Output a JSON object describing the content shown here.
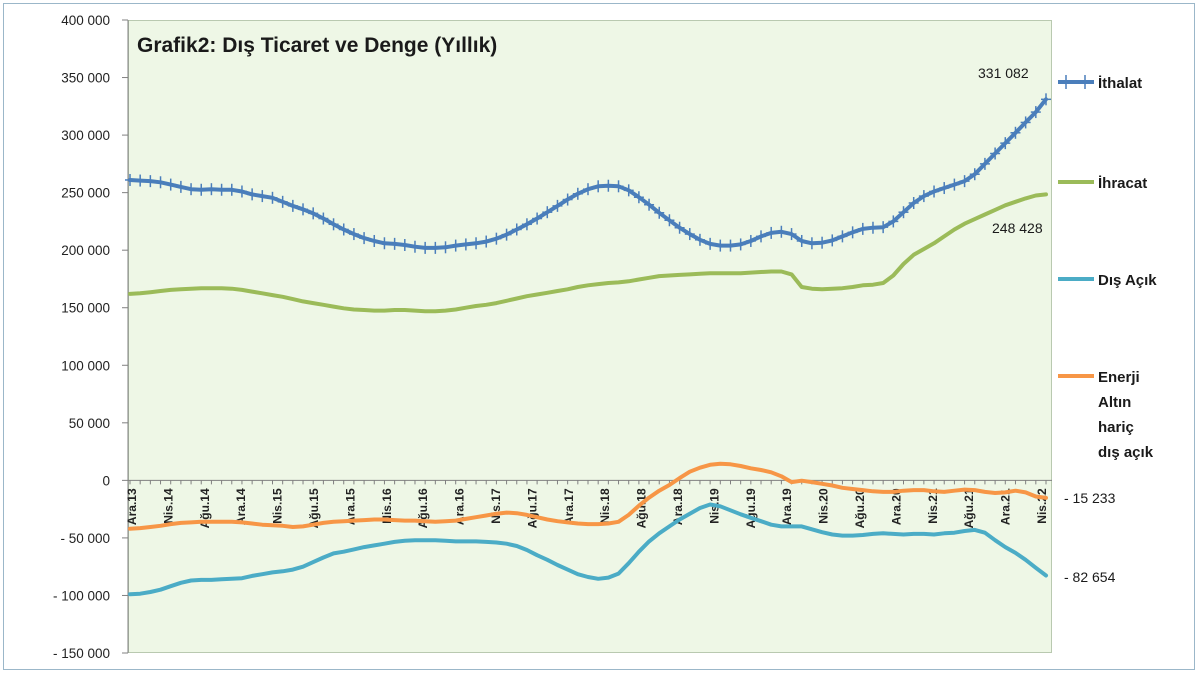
{
  "chart_data": {
    "type": "line",
    "title": "Grafik2: Dış Ticaret ve Denge (Yıllık)",
    "ylim": [
      -150000,
      400000
    ],
    "yticks": [
      400000,
      350000,
      300000,
      250000,
      200000,
      150000,
      100000,
      50000,
      0,
      -50000,
      -100000,
      -150000
    ],
    "ytick_labels": [
      "400 000",
      "350 000",
      "300 000",
      "250 000",
      "200 000",
      "150 000",
      "100 000",
      "50 000",
      "0",
      "- 50 000",
      "- 100 000",
      "- 150 000"
    ],
    "x_labels": [
      "Ara.13",
      "Nis.14",
      "Ağu.14",
      "Ara.14",
      "Nis.15",
      "Ağu.15",
      "Ara.15",
      "Nis.16",
      "Ağu.16",
      "Ara.16",
      "Nis.17",
      "Ağu.17",
      "Ara.17",
      "Nis.18",
      "Ağu.18",
      "Ara.18",
      "Nis.19",
      "Ağu.19",
      "Ara.19",
      "Nis.20",
      "Ağu.20",
      "Ara.20",
      "Nis.21",
      "Ağu.21",
      "Ara.21",
      "Nis.22"
    ],
    "series": [
      {
        "name": "İthalat",
        "color": "#4a7ebb",
        "marker": "plus",
        "values": [
          261000,
          260500,
          260000,
          259000,
          257000,
          255000,
          253000,
          252500,
          253000,
          252500,
          252500,
          251000,
          248500,
          247000,
          245500,
          242000,
          238500,
          235500,
          232000,
          227500,
          222500,
          218000,
          214000,
          210500,
          208000,
          206000,
          205500,
          204500,
          203000,
          202000,
          202000,
          202500,
          204000,
          205000,
          206000,
          207500,
          210000,
          213500,
          218000,
          222500,
          227500,
          233000,
          238500,
          244000,
          249000,
          253000,
          255500,
          256000,
          255500,
          252000,
          246000,
          239500,
          232500,
          226000,
          219500,
          214000,
          209000,
          205500,
          204000,
          204000,
          205000,
          208000,
          212000,
          215000,
          216000,
          214000,
          208000,
          206000,
          206500,
          208500,
          212000,
          215500,
          218500,
          219500,
          220000,
          225000,
          233000,
          241000,
          247000,
          251000,
          254000,
          257000,
          260000,
          266000,
          275000,
          284000,
          293000,
          302000,
          311000,
          320000,
          331082
        ]
      },
      {
        "name": "İhracat",
        "color": "#9bbb59",
        "marker": "none",
        "values": [
          162000,
          162500,
          163500,
          164500,
          165500,
          166000,
          166500,
          167000,
          167000,
          167000,
          166500,
          165500,
          164000,
          162500,
          161000,
          159500,
          157500,
          155500,
          154000,
          152500,
          151000,
          149500,
          148500,
          148000,
          147500,
          147500,
          148000,
          148000,
          147500,
          147000,
          147000,
          147500,
          148500,
          150000,
          151500,
          152500,
          154000,
          156000,
          158000,
          160000,
          161500,
          163000,
          164500,
          166000,
          168000,
          169500,
          170500,
          171500,
          172000,
          173000,
          174500,
          176000,
          177500,
          178000,
          178500,
          179000,
          179500,
          180000,
          180000,
          180000,
          180000,
          180500,
          181000,
          181500,
          181500,
          179000,
          168000,
          166500,
          166000,
          166500,
          167000,
          168000,
          169500,
          170000,
          171500,
          178000,
          188000,
          196000,
          201000,
          206000,
          212000,
          218000,
          223000,
          227000,
          231000,
          235000,
          239000,
          242000,
          245000,
          247500,
          248428
        ]
      },
      {
        "name": "Dış Açık",
        "color": "#4bacc6",
        "marker": "none",
        "values": [
          -99000,
          -98500,
          -97000,
          -95000,
          -92000,
          -89000,
          -87000,
          -86500,
          -86500,
          -86000,
          -85500,
          -85000,
          -83000,
          -81500,
          -80000,
          -79000,
          -77500,
          -75000,
          -71000,
          -67000,
          -63500,
          -62000,
          -60000,
          -58000,
          -56500,
          -55000,
          -53500,
          -52500,
          -52000,
          -52000,
          -52000,
          -52500,
          -53000,
          -53000,
          -53000,
          -53500,
          -54000,
          -55000,
          -57000,
          -60500,
          -65000,
          -69000,
          -73500,
          -77500,
          -81500,
          -84000,
          -85500,
          -84500,
          -81000,
          -72000,
          -62000,
          -53000,
          -46000,
          -40000,
          -34000,
          -29000,
          -24000,
          -21000,
          -22500,
          -26000,
          -29500,
          -32500,
          -35500,
          -38500,
          -40000,
          -40000,
          -40000,
          -42500,
          -45000,
          -47000,
          -48000,
          -48000,
          -47500,
          -46500,
          -46000,
          -46500,
          -47000,
          -46500,
          -46500,
          -47000,
          -46000,
          -45500,
          -44000,
          -43000,
          -45500,
          -52000,
          -58000,
          -63000,
          -69000,
          -76000,
          -82654
        ]
      },
      {
        "name": "Enerji Altın hariç dış açık",
        "label_lines": [
          "Enerji",
          "Altın",
          "hariç",
          "dış açık"
        ],
        "color": "#f79646",
        "marker": "none",
        "values": [
          -42000,
          -41500,
          -40500,
          -39500,
          -38000,
          -37000,
          -36500,
          -36000,
          -36000,
          -36000,
          -36000,
          -36500,
          -37500,
          -38500,
          -39000,
          -39500,
          -40500,
          -40000,
          -38500,
          -37000,
          -36000,
          -35500,
          -35000,
          -34500,
          -34000,
          -34000,
          -34500,
          -35000,
          -35000,
          -35500,
          -36000,
          -35500,
          -35000,
          -33500,
          -32000,
          -30500,
          -29000,
          -28000,
          -28500,
          -30000,
          -32000,
          -34000,
          -35500,
          -36500,
          -37500,
          -38000,
          -38000,
          -37500,
          -36000,
          -30000,
          -22000,
          -15000,
          -9000,
          -4000,
          2000,
          7500,
          11000,
          13500,
          14500,
          14000,
          12500,
          10500,
          9000,
          7000,
          3500,
          -1500,
          -300,
          -1500,
          -3000,
          -4500,
          -6500,
          -7500,
          -8500,
          -9500,
          -10000,
          -10000,
          -9000,
          -8500,
          -8500,
          -9500,
          -10000,
          -9000,
          -8000,
          -8500,
          -10000,
          -11000,
          -10500,
          -9000,
          -10500,
          -14000,
          -15233
        ]
      }
    ],
    "annotations": [
      {
        "series": "İthalat",
        "text": "331 082"
      },
      {
        "series": "İhracat",
        "text": "248 428"
      },
      {
        "series": "Enerji Altın hariç dış açık",
        "text": "- 15 233"
      },
      {
        "series": "Dış Açık",
        "text": "- 82 654"
      }
    ]
  }
}
